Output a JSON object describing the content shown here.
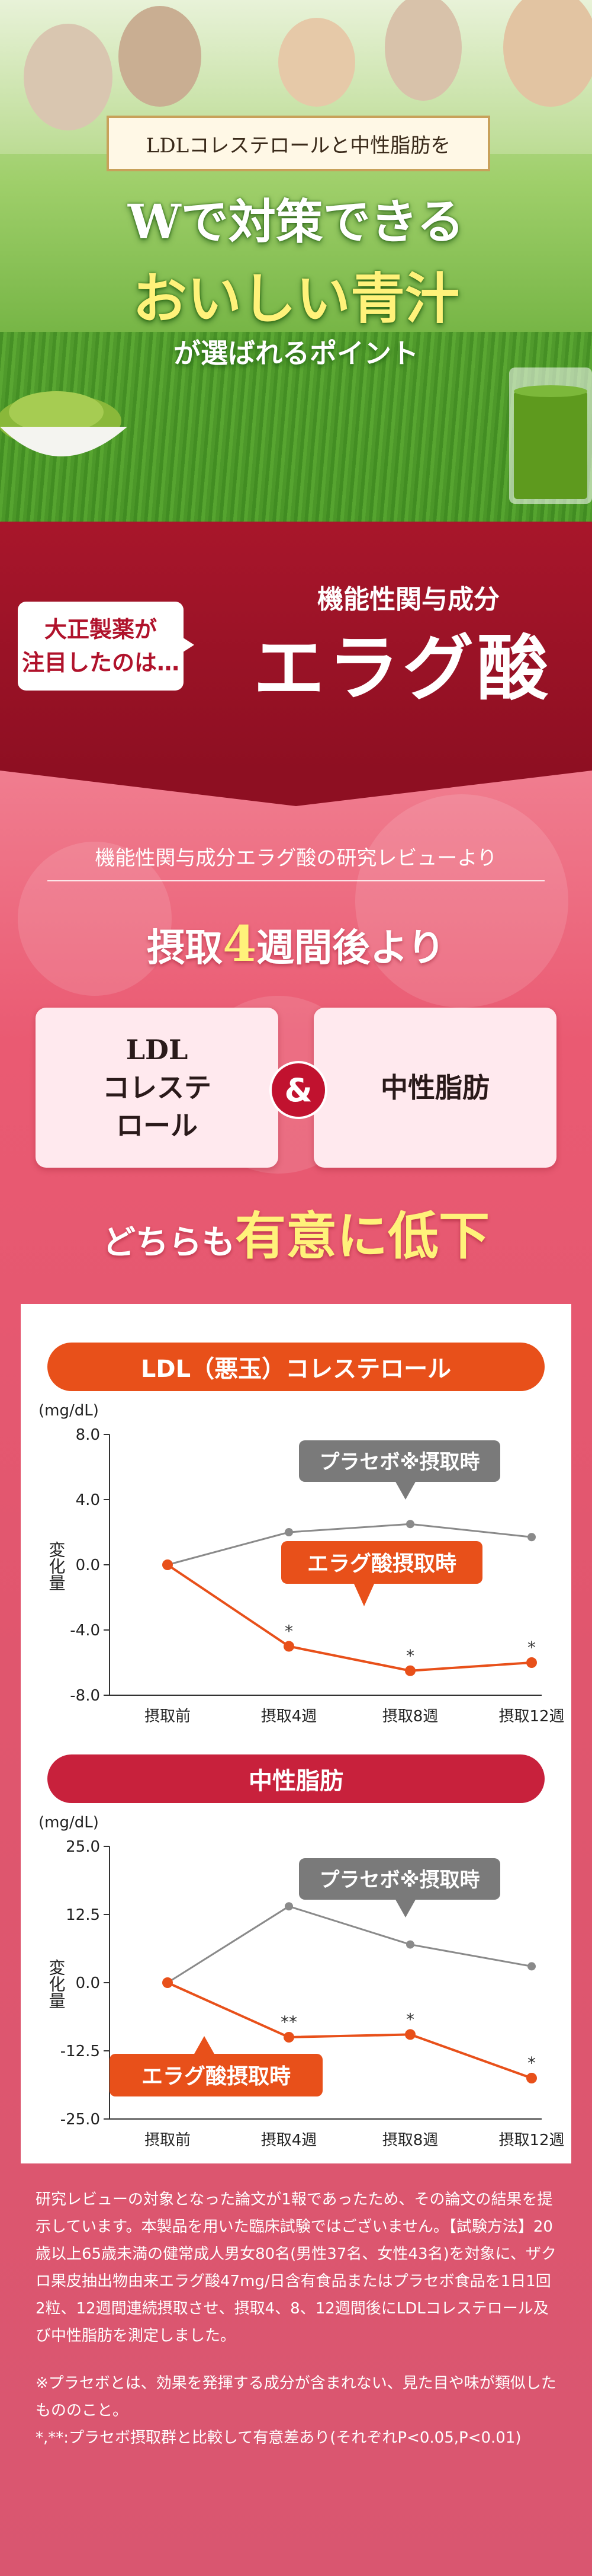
{
  "hero": {
    "banner": "LDLコレステロールと中性脂肪を",
    "title1": "Wで対策できる",
    "title2": "おいしい青汁",
    "subtitle": "が選ばれるポイント"
  },
  "intro": {
    "bubble_line1": "大正製薬が",
    "bubble_line2": "注目したのは…",
    "kinou": "機能性関与成分",
    "ingredient": "エラグ酸"
  },
  "result": {
    "review": "機能性関与成分エラグ酸の研究レビューより",
    "after_pre": "摂取",
    "after_week": "4",
    "after_post": "週間後より",
    "card1_line1": "LDL",
    "card1_line2": "コレステ",
    "card1_line3": "ロール",
    "amp": "&",
    "card2": "中性脂肪",
    "both_pre": "どちらも",
    "both_big": "有意に低下"
  },
  "colors": {
    "placebo": "#8a8a8a",
    "ellagic": "#e8501a",
    "title1_bg": "#e8501a",
    "title2_bg": "#c8213c",
    "callout_placebo": "#7a7a7a",
    "callout_ellagic": "#e8501a"
  },
  "chart_data": [
    {
      "type": "line",
      "title": "LDL（悪玉）コレステロール",
      "unit": "(mg/dL)",
      "ylabel": "変化量",
      "categories": [
        "摂取前",
        "摂取4週",
        "摂取8週",
        "摂取12週"
      ],
      "yticks": [
        "8.0",
        "4.0",
        "0.0",
        "-4.0",
        "-8.0"
      ],
      "ylim": [
        -8,
        8
      ],
      "grid": false,
      "series": [
        {
          "name": "プラセボ※摂取時",
          "values": [
            0,
            2.0,
            2.5,
            1.7
          ],
          "marks": [
            "",
            "",
            "",
            ""
          ]
        },
        {
          "name": "エラグ酸摂取時",
          "values": [
            0,
            -5.0,
            -6.5,
            -6.0
          ],
          "marks": [
            "",
            "*",
            "*",
            "*"
          ]
        }
      ]
    },
    {
      "type": "line",
      "title": "中性脂肪",
      "unit": "(mg/dL)",
      "ylabel": "変化量",
      "categories": [
        "摂取前",
        "摂取4週",
        "摂取8週",
        "摂取12週"
      ],
      "yticks": [
        "25.0",
        "12.5",
        "0.0",
        "-12.5",
        "-25.0"
      ],
      "ylim": [
        -25,
        25
      ],
      "grid": false,
      "series": [
        {
          "name": "プラセボ※摂取時",
          "values": [
            0,
            14.0,
            7.0,
            3.0
          ],
          "marks": [
            "",
            "",
            "",
            ""
          ]
        },
        {
          "name": "エラグ酸摂取時",
          "values": [
            0,
            -10.0,
            -9.5,
            -17.5
          ],
          "marks": [
            "",
            "**",
            "*",
            "*"
          ]
        }
      ]
    }
  ],
  "notes": {
    "p1": "研究レビューの対象となった論文が1報であったため、その論文の結果を提示しています。本製品を用いた臨床試験ではございません。【試験方法】20歳以上65歳未満の健常成人男女80名(男性37名、女性43名)を対象に、ザクロ果皮抽出物由来エラグ酸47mg/日含有食品またはプラセボ食品を1日1回2粒、12週間連続摂取させ、摂取4、8、12週間後にLDLコレステロール及び中性脂肪を測定しました。",
    "p2": "※プラセボとは、効果を発揮する成分が含まれない、見た目や味が類似したもののこと。",
    "p3": "*,**:プラセボ摂取群と比較して有意差あり(それぞれP<0.05,P<0.01)"
  }
}
